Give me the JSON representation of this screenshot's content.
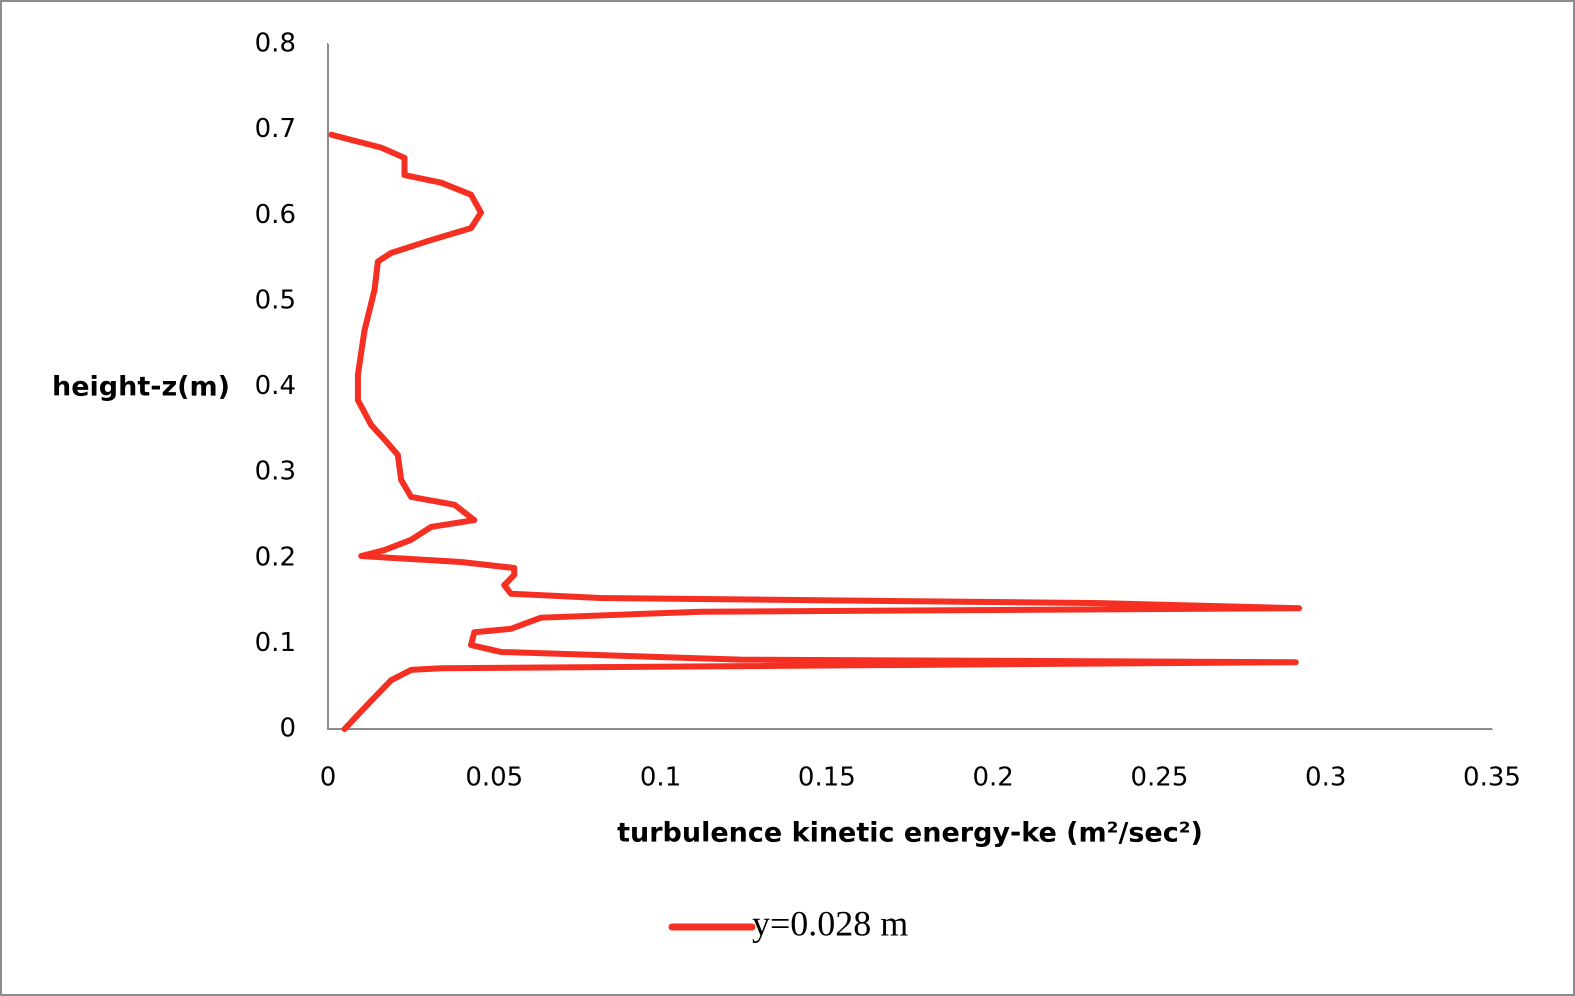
{
  "chart_data": {
    "type": "line",
    "x_label": "turbulence kinetic energy-ke (m²/sec²)",
    "y_label": "height-z(m)",
    "xlim": [
      0,
      0.35
    ],
    "xticks": [
      0,
      0.05,
      0.1,
      0.15,
      0.2,
      0.25,
      0.3,
      0.35
    ],
    "ylim": [
      0,
      0.8
    ],
    "yticks": [
      0,
      0.1,
      0.2,
      0.3,
      0.4,
      0.5,
      0.6,
      0.7,
      0.8
    ],
    "grid": false,
    "legend": "bottom",
    "series": [
      {
        "name": "y=0.028 m",
        "color": "#f52f22",
        "x": [
          0.005,
          0.0096,
          0.014,
          0.019,
          0.025,
          0.034,
          0.291,
          0.124,
          0.052,
          0.043,
          0.044,
          0.055,
          0.064,
          0.112,
          0.292,
          0.232,
          0.082,
          0.055,
          0.053,
          0.056,
          0.056,
          0.04,
          0.01,
          0.017,
          0.025,
          0.031,
          0.044,
          0.038,
          0.025,
          0.022,
          0.021,
          0.017,
          0.013,
          0.009,
          0.009,
          0.011,
          0.014,
          0.015,
          0.019,
          0.031,
          0.043,
          0.046,
          0.043,
          0.034,
          0.023,
          0.023,
          0.016,
          0.001
        ],
        "values": [
          0,
          0.019,
          0.037,
          0.057,
          0.069,
          0.071,
          0.078,
          0.081,
          0.09,
          0.098,
          0.113,
          0.117,
          0.13,
          0.137,
          0.141,
          0.147,
          0.153,
          0.158,
          0.168,
          0.18,
          0.188,
          0.195,
          0.202,
          0.209,
          0.221,
          0.236,
          0.244,
          0.262,
          0.271,
          0.291,
          0.32,
          0.338,
          0.355,
          0.384,
          0.414,
          0.466,
          0.513,
          0.546,
          0.556,
          0.571,
          0.585,
          0.603,
          0.624,
          0.638,
          0.647,
          0.667,
          0.679,
          0.694
        ]
      }
    ]
  }
}
